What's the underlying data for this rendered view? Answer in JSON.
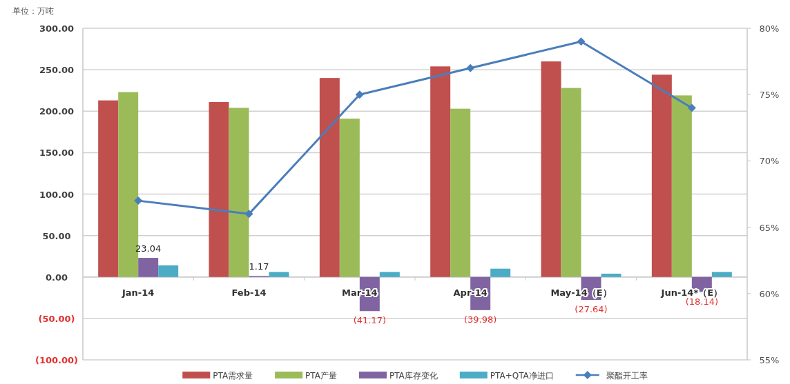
{
  "chart_data": {
    "type": "bar",
    "annotations": [
      "单位：万吨"
    ],
    "categories": [
      "Jan-14",
      "Feb-14",
      "Mar-14",
      "Apr-14",
      "May-14（E）",
      "Jun-14*（E）"
    ],
    "series": [
      {
        "name": "PTA需求量",
        "color": "#c0504d",
        "values": [
          213,
          211,
          240,
          254,
          260,
          244
        ]
      },
      {
        "name": "PTA产量",
        "color": "#9bbb59",
        "values": [
          223,
          204,
          191,
          203,
          228,
          219
        ]
      },
      {
        "name": "PTA库存变化",
        "color": "#8064a2",
        "values": [
          23.04,
          1.17,
          -41.17,
          -39.98,
          -27.64,
          -18.14
        ],
        "value_labels": [
          "23.04",
          "1.17",
          "(41.17)",
          "(39.98)",
          "(27.64)",
          "(18.14)"
        ]
      },
      {
        "name": "PTA+QTA净进口",
        "color": "#4bacc6",
        "values": [
          14,
          6,
          6,
          10,
          4,
          6
        ]
      },
      {
        "name": "聚酯开工率",
        "type": "line",
        "axis": "y2",
        "color": "#4a7ebb",
        "marker": "diamond",
        "values": [
          67,
          66,
          75,
          77,
          79,
          74
        ]
      }
    ],
    "ylim": [
      -100,
      300
    ],
    "yticks": [
      {
        "value": -100,
        "label": "(100.00)"
      },
      {
        "value": -50,
        "label": "(50.00)"
      },
      {
        "value": 0,
        "label": "0.00"
      },
      {
        "value": 50,
        "label": "50.00"
      },
      {
        "value": 100,
        "label": "100.00"
      },
      {
        "value": 150,
        "label": "150.00"
      },
      {
        "value": 200,
        "label": "200.00"
      },
      {
        "value": 250,
        "label": "250.00"
      },
      {
        "value": 300,
        "label": "300.00"
      }
    ],
    "y2lim": [
      55,
      80
    ],
    "y2ticks": [
      {
        "value": 55,
        "label": "55%"
      },
      {
        "value": 60,
        "label": "60%"
      },
      {
        "value": 65,
        "label": "65%"
      },
      {
        "value": 70,
        "label": "70%"
      },
      {
        "value": 75,
        "label": "75%"
      },
      {
        "value": 80,
        "label": "80%"
      }
    ],
    "grid": "y",
    "legend": "bottom"
  }
}
